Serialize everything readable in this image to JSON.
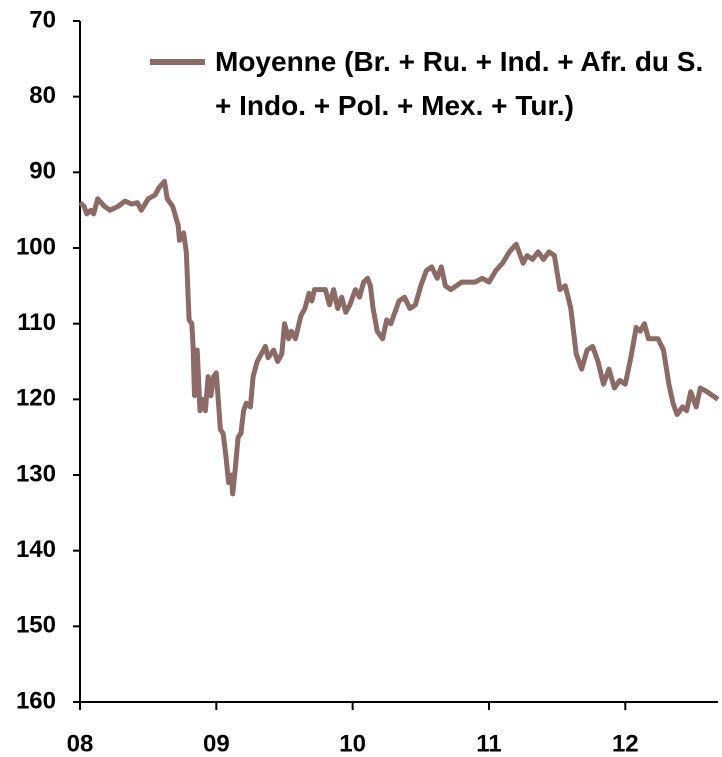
{
  "chart_data": {
    "type": "line",
    "ylim": [
      70,
      160
    ],
    "y_inverted": true,
    "yticks": [
      70,
      80,
      90,
      100,
      110,
      120,
      130,
      140,
      150,
      160
    ],
    "xlim": [
      2008,
      2012.68
    ],
    "xticks": [
      {
        "value": 2008,
        "label": "08"
      },
      {
        "value": 2009,
        "label": "09"
      },
      {
        "value": 2010,
        "label": "10"
      },
      {
        "value": 2011,
        "label": "11"
      },
      {
        "value": 2012,
        "label": "12"
      }
    ],
    "legend": "top-right",
    "series": [
      {
        "name": "Moyenne (Br. + Ru. + Ind. + Afr. du S. + Indo. + Pol. + Mex. + Tur.)",
        "color": "#8c6a66",
        "x": [
          2008.0,
          2008.03,
          2008.05,
          2008.08,
          2008.1,
          2008.13,
          2008.18,
          2008.22,
          2008.28,
          2008.33,
          2008.38,
          2008.42,
          2008.45,
          2008.5,
          2008.55,
          2008.58,
          2008.62,
          2008.64,
          2008.68,
          2008.72,
          2008.73,
          2008.76,
          2008.78,
          2008.8,
          2008.82,
          2008.83,
          2008.84,
          2008.86,
          2008.88,
          2008.9,
          2008.92,
          2008.94,
          2008.96,
          2008.98,
          2009.0,
          2009.03,
          2009.05,
          2009.07,
          2009.09,
          2009.11,
          2009.12,
          2009.14,
          2009.16,
          2009.18,
          2009.2,
          2009.22,
          2009.25,
          2009.27,
          2009.3,
          2009.33,
          2009.36,
          2009.38,
          2009.42,
          2009.45,
          2009.48,
          2009.5,
          2009.53,
          2009.55,
          2009.58,
          2009.62,
          2009.65,
          2009.68,
          2009.7,
          2009.72,
          2009.76,
          2009.8,
          2009.83,
          2009.86,
          2009.89,
          2009.92,
          2009.95,
          2009.98,
          2010.02,
          2010.05,
          2010.08,
          2010.11,
          2010.13,
          2010.15,
          2010.18,
          2010.22,
          2010.25,
          2010.28,
          2010.31,
          2010.34,
          2010.38,
          2010.42,
          2010.46,
          2010.5,
          2010.54,
          2010.58,
          2010.62,
          2010.65,
          2010.68,
          2010.72,
          2010.76,
          2010.8,
          2010.85,
          2010.9,
          2010.95,
          2011.0,
          2011.05,
          2011.1,
          2011.15,
          2011.2,
          2011.25,
          2011.28,
          2011.32,
          2011.36,
          2011.4,
          2011.44,
          2011.48,
          2011.52,
          2011.56,
          2011.6,
          2011.64,
          2011.68,
          2011.72,
          2011.76,
          2011.8,
          2011.84,
          2011.88,
          2011.92,
          2011.96,
          2012.0,
          2012.04,
          2012.08,
          2012.11,
          2012.14,
          2012.17,
          2012.2,
          2012.24,
          2012.28,
          2012.32,
          2012.35,
          2012.38,
          2012.42,
          2012.45,
          2012.48,
          2012.52,
          2012.55,
          2012.6,
          2012.64,
          2012.68
        ],
        "values": [
          94,
          94.5,
          95.5,
          95,
          95.5,
          93.5,
          94.5,
          95,
          94.5,
          93.8,
          94.2,
          94,
          95,
          93.5,
          93,
          92,
          91.2,
          93.5,
          94.5,
          97,
          99,
          98,
          100.5,
          109.5,
          110,
          113,
          119.5,
          113.5,
          121.5,
          120,
          121.5,
          117,
          119.5,
          117,
          116.5,
          124,
          124.5,
          127.5,
          131,
          130,
          132.5,
          129,
          125,
          124.5,
          121.5,
          120.5,
          121,
          117,
          115,
          114,
          113,
          114.5,
          113.5,
          115,
          114,
          110,
          112,
          111,
          112,
          109,
          108,
          106,
          107,
          105.5,
          105.5,
          105.5,
          107.5,
          105.5,
          108,
          106.5,
          108.5,
          107.5,
          105.5,
          106.5,
          104.5,
          104,
          105,
          108,
          111,
          112,
          109.5,
          110,
          108.5,
          107,
          106.5,
          108,
          107.5,
          105,
          103,
          102.5,
          104,
          102.5,
          105,
          105.5,
          105,
          104.5,
          104.5,
          104.5,
          104,
          104.5,
          103,
          102,
          100.5,
          99.5,
          102,
          101,
          101.5,
          100.5,
          101.5,
          100.5,
          101,
          105.5,
          105,
          108,
          114,
          116,
          113.5,
          113,
          115,
          118,
          116,
          118.5,
          117.5,
          118,
          114.5,
          110.5,
          111,
          110,
          112,
          112,
          112,
          113.5,
          118,
          120.5,
          122,
          121,
          121.5,
          119,
          121,
          118.5,
          119,
          119.5,
          120
        ]
      }
    ]
  }
}
